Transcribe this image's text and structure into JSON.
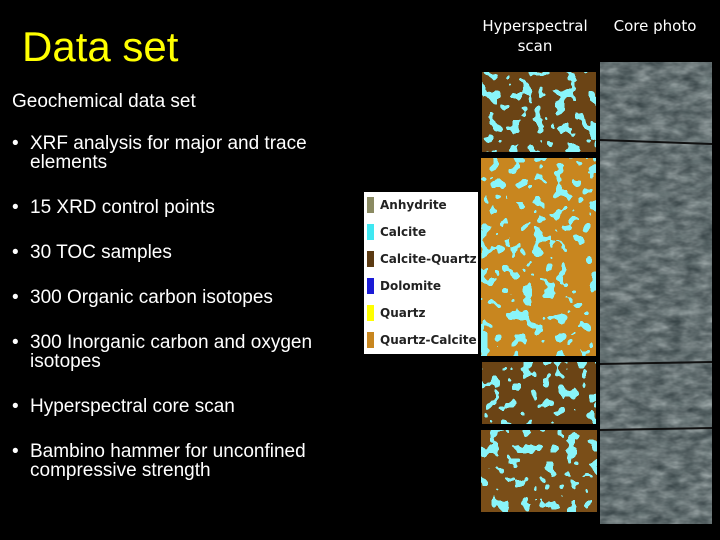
{
  "slide": {
    "title": "Data set",
    "subtitle": "Geochemical data set",
    "bullet_char": "•",
    "bullets": [
      "XRF analysis for major and trace elements",
      "15 XRD control points",
      "30 TOC samples",
      "300 Organic carbon isotopes",
      "300 Inorganic carbon and oxygen isotopes",
      "Hyperspectral core scan",
      "Bambino hammer for unconfined compressive strength"
    ]
  },
  "columns": {
    "hyperspectral_label_line1": "Hyperspectral",
    "hyperspectral_label_line2": "scan",
    "core_photo_label": "Core photo"
  },
  "legend": {
    "items": [
      {
        "label": "Anhydrite",
        "color": "#8a8a62"
      },
      {
        "label": "Calcite",
        "color": "#3fe8f2"
      },
      {
        "label": "Calcite-Quartz",
        "color": "#5b3a12"
      },
      {
        "label": "Dolomite",
        "color": "#1b1bd6"
      },
      {
        "label": "Quartz",
        "color": "#ffff00"
      },
      {
        "label": "Quartz-Calcite",
        "color": "#c8861f"
      }
    ]
  },
  "colors": {
    "title": "#ffff00",
    "text": "#ffffff",
    "background": "#000000"
  }
}
